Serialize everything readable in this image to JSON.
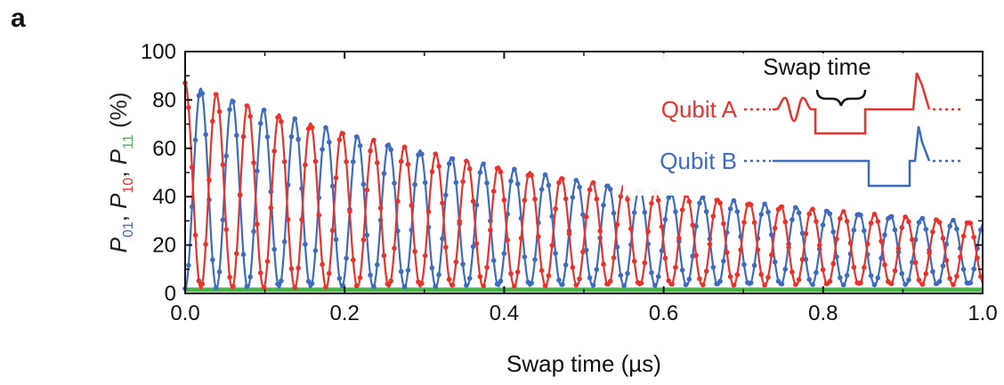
{
  "panel_label": "a",
  "chart_data": {
    "type": "line",
    "title": "",
    "xlabel": "Swap time (µs)",
    "ylabel_parts": [
      {
        "text": "P",
        "sub": "01",
        "color": "#3d6bbf"
      },
      {
        "text": "P",
        "sub": "10",
        "color": "#e8322b"
      },
      {
        "text": "P",
        "sub": "11",
        "color": "#48b548"
      },
      {
        "text": "(%)",
        "sub": "",
        "color": "#222222"
      }
    ],
    "xlim": [
      0.0,
      1.0
    ],
    "ylim": [
      0,
      100
    ],
    "x_ticks": [
      "0.0",
      "0.2",
      "0.4",
      "0.6",
      "0.8",
      "1.0"
    ],
    "y_ticks": [
      "0",
      "20",
      "40",
      "60",
      "80",
      "100"
    ],
    "grid": false,
    "model": {
      "oscillation_period_us": 0.0393,
      "decay_time_us": 0.58,
      "high_start": 87,
      "low_start": 2,
      "high_end": 17,
      "low_end": 4,
      "sample_interval_us": 0.0043
    },
    "series": [
      {
        "name": "P01",
        "color": "#3d6bbf",
        "phase": "starts low",
        "values_sample": [
          {
            "x": 0.0,
            "y": 2
          },
          {
            "x": 0.02,
            "y": 83
          },
          {
            "x": 0.5,
            "y": 34
          },
          {
            "x": 1.0,
            "y": 5
          }
        ]
      },
      {
        "name": "P10",
        "color": "#e8322b",
        "phase": "starts high",
        "values_sample": [
          {
            "x": 0.0,
            "y": 87
          },
          {
            "x": 0.04,
            "y": 78
          },
          {
            "x": 0.5,
            "y": 32
          },
          {
            "x": 1.0,
            "y": 16
          }
        ]
      },
      {
        "name": "P11",
        "color": "#48b548",
        "phase": "flat",
        "values_sample": [
          {
            "x": 0.0,
            "y": 1.5
          },
          {
            "x": 1.0,
            "y": 1.5
          }
        ]
      }
    ],
    "inset": {
      "title": "Swap time",
      "qubit_a_label": "Qubit A",
      "qubit_b_label": "Qubit B",
      "qubit_a_color": "#e8322b",
      "qubit_b_color": "#3d6bbf"
    }
  }
}
